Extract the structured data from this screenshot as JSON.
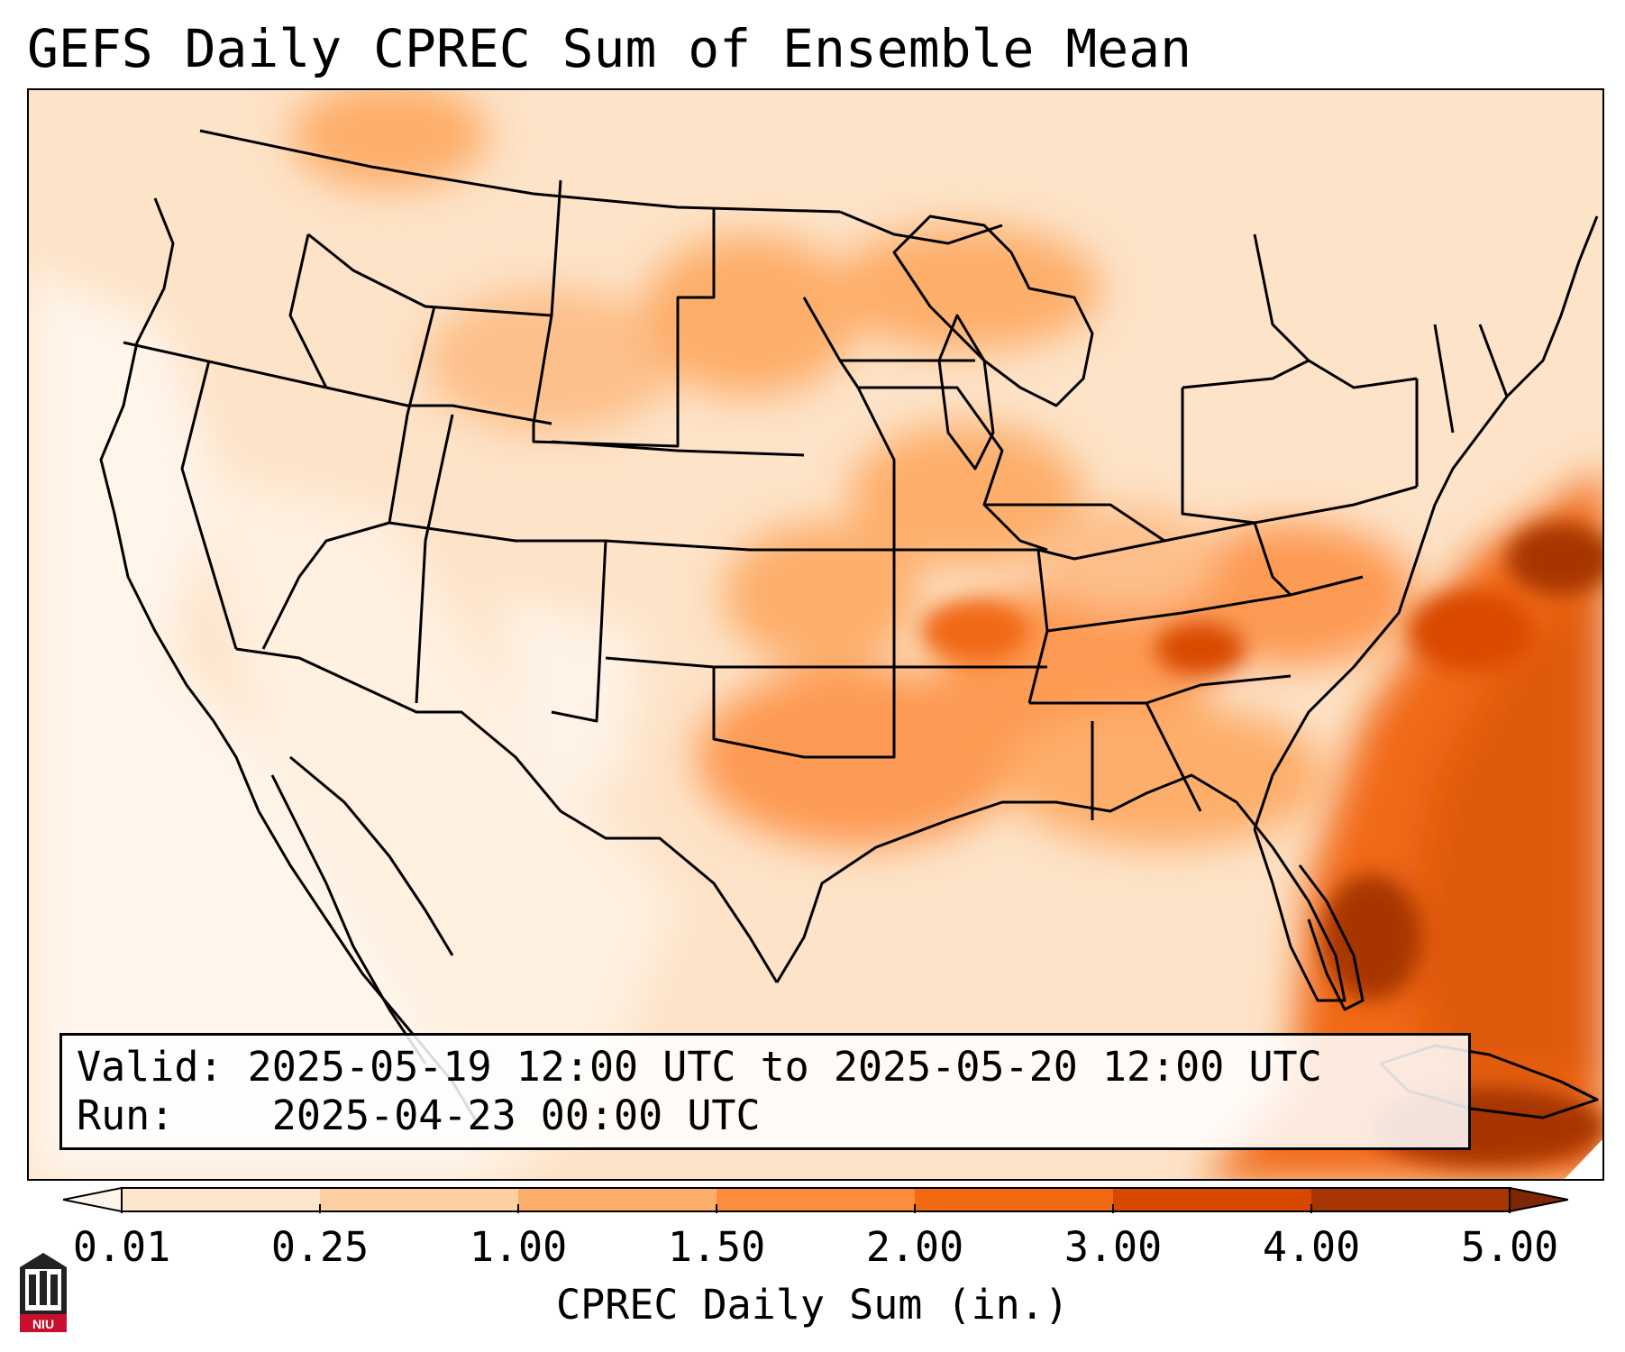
{
  "title": "GEFS Daily CPREC Sum of Ensemble Mean",
  "info": {
    "valid_label": "Valid:",
    "valid_value": "2025-05-19 12:00 UTC to 2025-05-20 12:00 UTC",
    "run_label": "Run:",
    "run_value": "2025-04-23 00:00 UTC"
  },
  "colorbar": {
    "label": "CPREC Daily Sum (in.)",
    "ticks": [
      "0.01",
      "0.25",
      "1.00",
      "1.50",
      "2.00",
      "3.00",
      "4.00",
      "5.00"
    ],
    "colors": [
      "#fff5eb",
      "#fee6ce",
      "#fdd0a2",
      "#fdae6b",
      "#fd8d3c",
      "#f16913",
      "#d94801",
      "#a63603",
      "#7f2704"
    ]
  },
  "logo": {
    "text": "NIU",
    "colors": {
      "shield": "#222222",
      "band": "#c8102e"
    }
  },
  "map": {
    "description_colors": {
      "land_outline": "#000000",
      "ocean_low": "#fff5eb"
    }
  }
}
